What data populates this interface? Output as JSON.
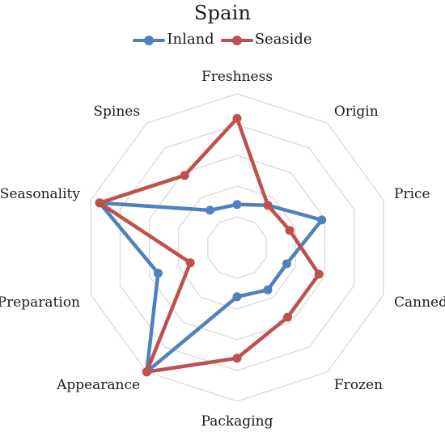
{
  "chart_data": {
    "type": "radar",
    "title": "Spain",
    "categories": [
      "Freshness",
      "Origin",
      "Price",
      "Canned",
      "Frozen",
      "Packaging",
      "Appearance",
      "Preparation",
      "Seasonality",
      "Spines"
    ],
    "rlim": [
      0,
      5
    ],
    "grid": true,
    "legend_position": "top",
    "series": [
      {
        "name": "Inland",
        "color": "#4f81bd",
        "values": [
          1.4,
          1.7,
          2.9,
          1.7,
          1.7,
          1.6,
          5.0,
          2.7,
          4.7,
          1.5
        ]
      },
      {
        "name": "Seaside",
        "color": "#c0504d",
        "values": [
          4.2,
          1.7,
          1.8,
          2.8,
          2.8,
          3.6,
          5.0,
          1.6,
          4.7,
          2.9
        ]
      }
    ]
  }
}
